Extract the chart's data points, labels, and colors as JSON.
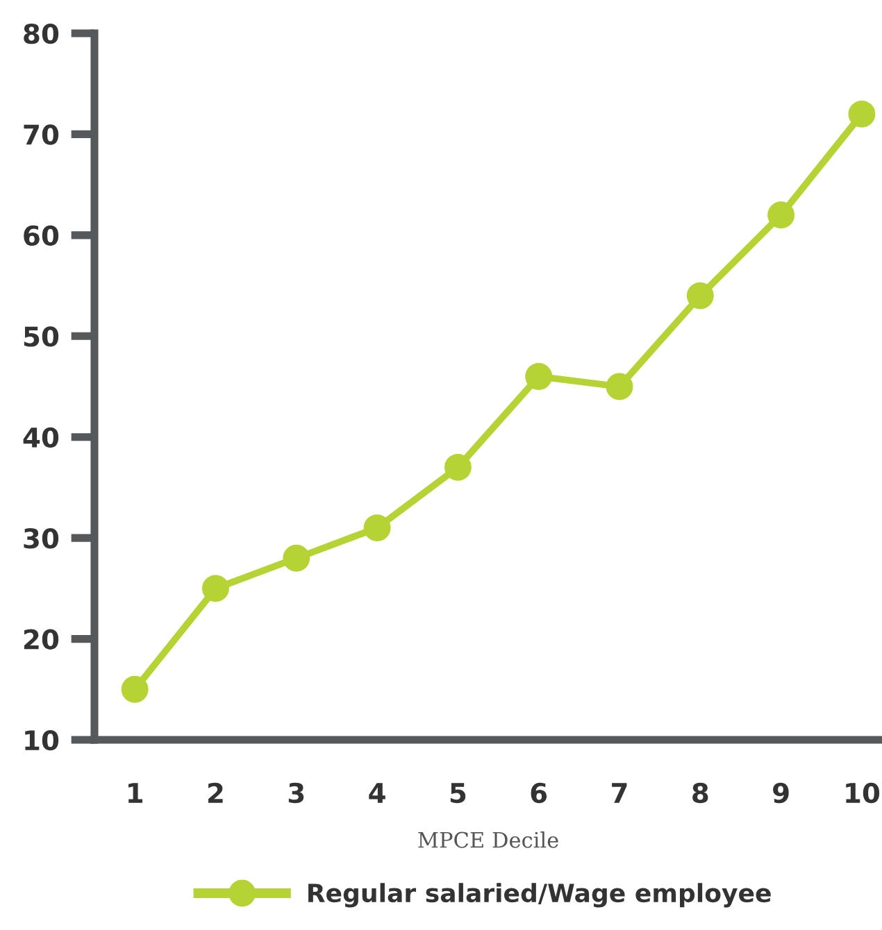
{
  "chart_data": {
    "type": "line",
    "xlabel": "MPCE Decile",
    "categories": [
      "1",
      "2",
      "3",
      "4",
      "5",
      "6",
      "7",
      "8",
      "9",
      "10"
    ],
    "series": [
      {
        "name": "Regular salaried/Wage employee",
        "color": "#b5d334",
        "values": [
          15,
          25,
          28,
          31,
          37,
          46,
          45,
          54,
          62,
          72
        ]
      }
    ],
    "ylim": [
      10,
      80
    ],
    "yticks": [
      10,
      20,
      30,
      40,
      50,
      60,
      70,
      80
    ],
    "grid": false,
    "legend": "bottom",
    "marker": "circle",
    "line_style": "solid"
  }
}
